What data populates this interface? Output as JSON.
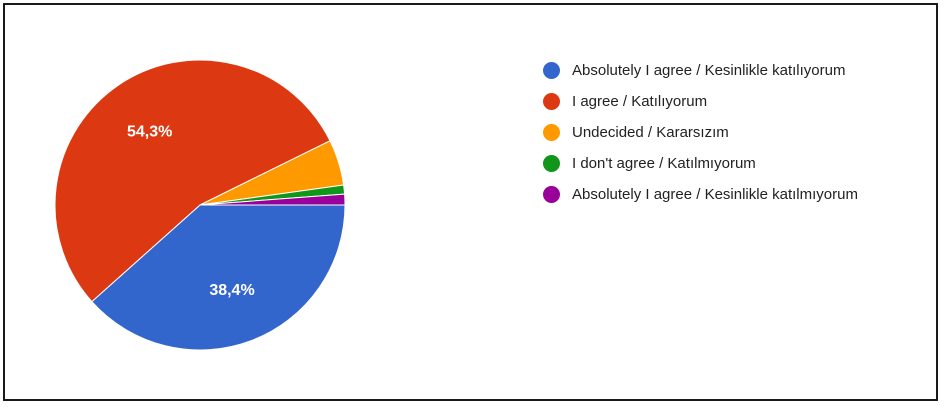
{
  "chart_data": {
    "type": "pie",
    "title": "",
    "slices": [
      {
        "label": "Absolutely I agree / Kesinlikle katılıyorum",
        "value": 38.4,
        "color": "#3366cc",
        "display_label": "38,4%"
      },
      {
        "label": "I agree / Katılıyorum",
        "value": 54.3,
        "color": "#dc3912",
        "display_label": "54,3%"
      },
      {
        "label": "Undecided / Kararsızım",
        "value": 5.1,
        "color": "#ff9900",
        "display_label": ""
      },
      {
        "label": "I don't agree / Katılmıyorum",
        "value": 1.0,
        "color": "#109618",
        "display_label": ""
      },
      {
        "label": "Absolutely I agree / Kesinlikle katılmıyorum",
        "value": 1.2,
        "color": "#990099",
        "display_label": ""
      }
    ],
    "legend_position": "right"
  },
  "legend": [
    {
      "text": "Absolutely I agree / Kesinlikle katılıyorum",
      "color": "#3366cc"
    },
    {
      "text": "I agree / Katılıyorum",
      "color": "#dc3912"
    },
    {
      "text": "Undecided / Kararsızım",
      "color": "#ff9900"
    },
    {
      "text": "I don't agree / Katılmıyorum",
      "color": "#109618"
    },
    {
      "text": "Absolutely I agree / Kesinlikle katılmıyorum",
      "color": "#990099"
    }
  ]
}
